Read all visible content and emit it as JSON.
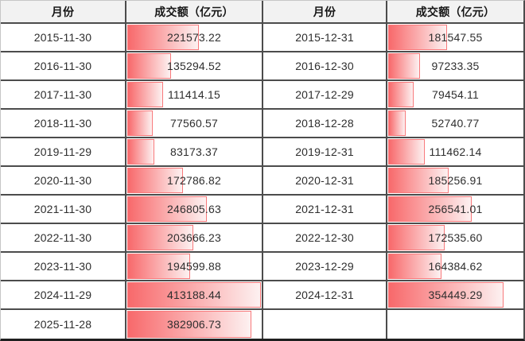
{
  "header": {
    "month": "月份",
    "amount": "成交额（亿元）"
  },
  "colors": {
    "bar_start": "#f8696b",
    "bar_end": "#fdf1f1",
    "bar_border": "#f8797b",
    "grid_line": "#4c4c4c",
    "header_bg": "#f2f2f2"
  },
  "chart_data": {
    "type": "table",
    "columns": [
      "月份",
      "成交额（亿元）",
      "月份",
      "成交额（亿元）"
    ],
    "bar_scale_max": 413188.44,
    "left": {
      "rows": [
        {
          "month": "2015-11-30",
          "amount": "221573.22"
        },
        {
          "month": "2016-11-30",
          "amount": "135294.52"
        },
        {
          "month": "2017-11-30",
          "amount": "111414.15"
        },
        {
          "month": "2018-11-30",
          "amount": "77560.57"
        },
        {
          "month": "2019-11-29",
          "amount": "83173.37"
        },
        {
          "month": "2020-11-30",
          "amount": "172786.82"
        },
        {
          "month": "2021-11-30",
          "amount": "246805.63"
        },
        {
          "month": "2022-11-30",
          "amount": "203666.23"
        },
        {
          "month": "2023-11-30",
          "amount": "194599.88"
        },
        {
          "month": "2024-11-29",
          "amount": "413188.44"
        },
        {
          "month": "2025-11-28",
          "amount": "382906.73"
        }
      ]
    },
    "right": {
      "rows": [
        {
          "month": "2015-12-31",
          "amount": "181547.55"
        },
        {
          "month": "2016-12-30",
          "amount": "97233.35"
        },
        {
          "month": "2017-12-29",
          "amount": "79454.11"
        },
        {
          "month": "2018-12-28",
          "amount": "52740.77"
        },
        {
          "month": "2019-12-31",
          "amount": "111462.14"
        },
        {
          "month": "2020-12-31",
          "amount": "185256.91"
        },
        {
          "month": "2021-12-31",
          "amount": "256541.01"
        },
        {
          "month": "2022-12-30",
          "amount": "172535.60"
        },
        {
          "month": "2023-12-29",
          "amount": "164384.62"
        },
        {
          "month": "2024-12-31",
          "amount": "354449.29"
        },
        {
          "month": "",
          "amount": ""
        }
      ]
    }
  }
}
